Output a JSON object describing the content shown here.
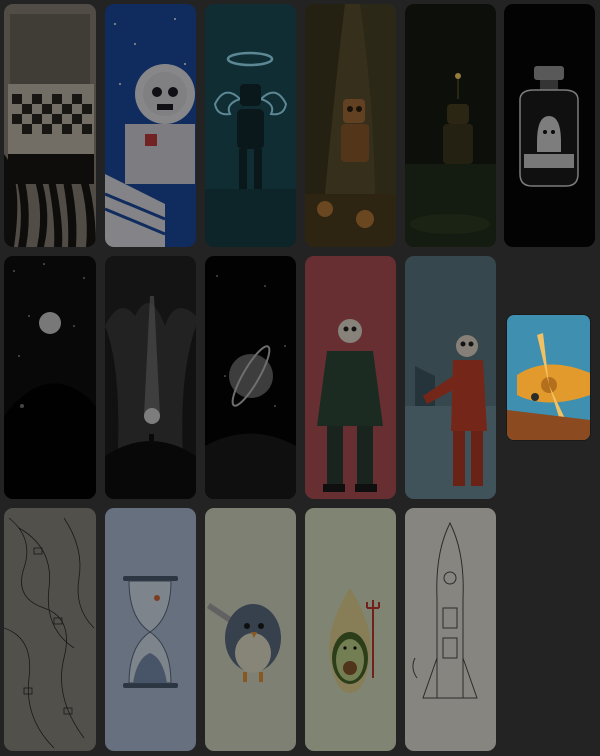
{
  "gallery": {
    "rows": [
      {
        "cards": [
          {
            "name": "bed-tentacles-wallpaper",
            "bg": "#8c8579"
          },
          {
            "name": "astronaut-skull-wallpaper",
            "bg": "#1d4aa3"
          },
          {
            "name": "angel-robot-wallpaper",
            "bg": "#1c4e58"
          },
          {
            "name": "tree-robot-wallpaper",
            "bg": "#5d5230"
          },
          {
            "name": "night-robot-wallpaper",
            "bg": "#151a12"
          },
          {
            "name": "jar-ghost-wallpaper",
            "bg": "#060606"
          }
        ]
      },
      {
        "cards": [
          {
            "name": "moon-hill-wallpaper",
            "bg": "#0e0e0e"
          },
          {
            "name": "cave-light-wallpaper",
            "bg": "#3b3b3b"
          },
          {
            "name": "saturn-planet-wallpaper",
            "bg": "#050505"
          },
          {
            "name": "skeleton-pilot-wallpaper",
            "bg": "#b45256"
          },
          {
            "name": "skeleton-mechanic-wallpaper",
            "bg": "#5e7b86"
          }
        ]
      },
      {
        "cards": [
          {
            "name": "sketch-map-wallpaper",
            "bg": "#8d8a81"
          },
          {
            "name": "hourglass-wallpaper",
            "bg": "#b0c2da"
          },
          {
            "name": "bird-knife-wallpaper",
            "bg": "#d9dcc6"
          },
          {
            "name": "avocado-devil-wallpaper",
            "bg": "#dce3c5"
          },
          {
            "name": "rocket-sketch-wallpaper",
            "bg": "#e8e6dc"
          }
        ]
      }
    ],
    "zoomed_preview": {
      "name": "airplane-propeller-preview",
      "bg": "#3f8fb0",
      "accent": "#e39a2c"
    }
  }
}
